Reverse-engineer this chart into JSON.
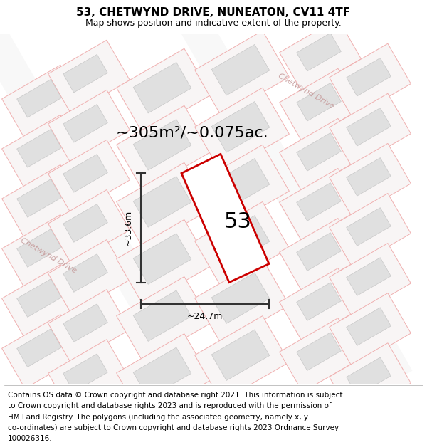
{
  "title_line1": "53, CHETWYND DRIVE, NUNEATON, CV11 4TF",
  "title_line2": "Map shows position and indicative extent of the property.",
  "area_text": "~305m²/~0.075ac.",
  "number_label": "53",
  "dim_vertical": "~33.6m",
  "dim_horizontal": "~24.7m",
  "road_label_left": "Chetwynd Drive",
  "road_label_top": "Chetwynd Drive",
  "footer_lines": [
    "Contains OS data © Crown copyright and database right 2021. This information is subject",
    "to Crown copyright and database rights 2023 and is reproduced with the permission of",
    "HM Land Registry. The polygons (including the associated geometry, namely x, y",
    "co-ordinates) are subject to Crown copyright and database rights 2023 Ordnance Survey",
    "100026316."
  ],
  "bg_color": "#f5f5f5",
  "plot_bg": "#eeeeee",
  "building_fill": "#e0e0e0",
  "building_edge": "#c8c8c8",
  "plot_line_color": "#f0b0b0",
  "plot_outline_color": "#cc0000",
  "dim_line_color": "#333333",
  "road_text_color": "#c8a0a0",
  "title_fontsize": 11,
  "subtitle_fontsize": 9,
  "footer_fontsize": 7.5,
  "area_fontsize": 16,
  "number_fontsize": 22,
  "road_label_fontsize": 8,
  "dim_fontsize": 9
}
